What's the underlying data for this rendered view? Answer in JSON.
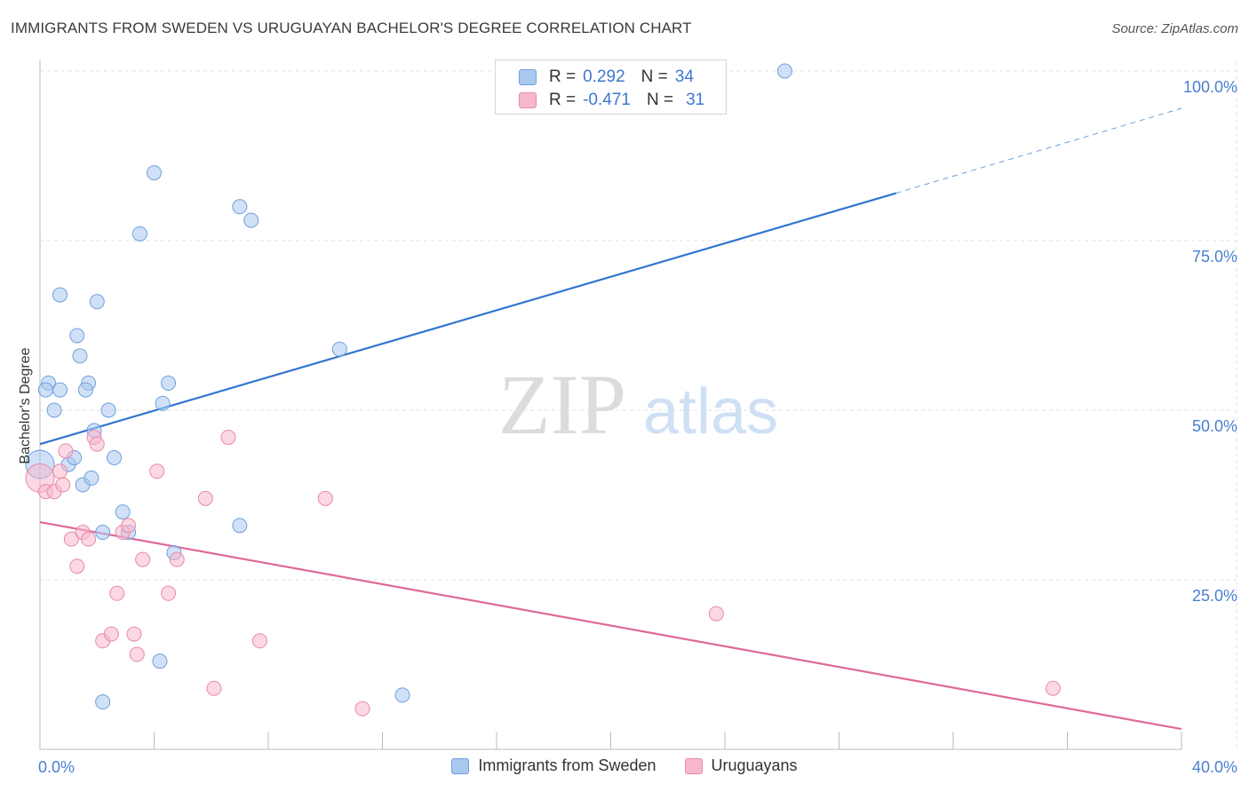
{
  "title": "IMMIGRANTS FROM SWEDEN VS URUGUAYAN BACHELOR'S DEGREE CORRELATION CHART",
  "source": "Source: ZipAtlas.com",
  "watermark": {
    "zip": "ZIP",
    "atlas": "atlas"
  },
  "legend": {
    "rows": [
      {
        "r_label": "R =",
        "r_value": "0.292",
        "n_label": "N =",
        "n_value": "34",
        "color": "#a9c8f0",
        "border": "#6f9fdc"
      },
      {
        "r_label": "R =",
        "r_value": "-0.471",
        "n_label": "N =",
        "n_value": "31",
        "color": "#f7b8cc",
        "border": "#e88aa8"
      }
    ]
  },
  "chart_data": {
    "type": "scatter",
    "title": "IMMIGRANTS FROM SWEDEN VS URUGUAYAN BACHELOR'S DEGREE CORRELATION CHART",
    "xlabel": "",
    "ylabel": "Bachelor's Degree",
    "xlim": [
      0,
      40
    ],
    "ylim": [
      0,
      100
    ],
    "x_tick_labels": [
      "0.0%",
      "40.0%"
    ],
    "y_ticks": [
      25,
      50,
      75,
      100
    ],
    "y_tick_labels": [
      "25.0%",
      "50.0%",
      "75.0%",
      "100.0%"
    ],
    "grid": true,
    "legend_position": "bottom",
    "series": [
      {
        "name": "Immigrants from Sweden",
        "color": "#a9c8f0",
        "stroke": "#6f9fdc",
        "trend_color": "#2f74d0",
        "trend": {
          "x0": 0,
          "y0": 45.0,
          "x1": 30,
          "y1": 82.0,
          "dash_to_x": 40,
          "dash_to_y": 94.5
        },
        "points": [
          [
            0.0,
            42
          ],
          [
            0.3,
            54
          ],
          [
            0.5,
            50
          ],
          [
            0.7,
            53
          ],
          [
            0.7,
            67
          ],
          [
            1.0,
            42
          ],
          [
            1.2,
            43
          ],
          [
            1.3,
            61
          ],
          [
            1.4,
            58
          ],
          [
            1.5,
            39
          ],
          [
            1.7,
            54
          ],
          [
            1.8,
            40
          ],
          [
            1.9,
            47
          ],
          [
            2.0,
            66
          ],
          [
            2.2,
            32
          ],
          [
            2.2,
            7
          ],
          [
            2.4,
            50
          ],
          [
            2.6,
            43
          ],
          [
            2.9,
            35
          ],
          [
            3.1,
            32
          ],
          [
            3.5,
            76
          ],
          [
            4.0,
            85
          ],
          [
            4.2,
            13
          ],
          [
            4.3,
            51
          ],
          [
            4.5,
            54
          ],
          [
            4.7,
            29
          ],
          [
            7.0,
            80
          ],
          [
            7.0,
            33
          ],
          [
            7.4,
            78
          ],
          [
            10.5,
            59
          ],
          [
            12.7,
            8
          ],
          [
            26.1,
            100
          ],
          [
            0.2,
            53
          ],
          [
            1.6,
            53
          ]
        ]
      },
      {
        "name": "Uruguayans",
        "color": "#f7b8cc",
        "stroke": "#e88aa8",
        "trend_color": "#e0689a",
        "trend": {
          "x0": 0,
          "y0": 33.5,
          "x1": 40,
          "y1": 3.0
        },
        "points": [
          [
            0.0,
            40
          ],
          [
            0.2,
            38
          ],
          [
            0.5,
            38
          ],
          [
            0.7,
            41
          ],
          [
            0.8,
            39
          ],
          [
            0.9,
            44
          ],
          [
            1.1,
            31
          ],
          [
            1.3,
            27
          ],
          [
            1.5,
            32
          ],
          [
            1.7,
            31
          ],
          [
            1.9,
            46
          ],
          [
            2.0,
            45
          ],
          [
            2.2,
            16
          ],
          [
            2.5,
            17
          ],
          [
            2.7,
            23
          ],
          [
            2.9,
            32
          ],
          [
            3.1,
            33
          ],
          [
            3.3,
            17
          ],
          [
            3.4,
            14
          ],
          [
            3.6,
            28
          ],
          [
            4.1,
            41
          ],
          [
            4.5,
            23
          ],
          [
            4.8,
            28
          ],
          [
            5.8,
            37
          ],
          [
            6.1,
            9
          ],
          [
            6.6,
            46
          ],
          [
            7.7,
            16
          ],
          [
            10.0,
            37
          ],
          [
            11.3,
            6
          ],
          [
            23.7,
            20
          ],
          [
            35.5,
            9
          ]
        ]
      }
    ]
  }
}
